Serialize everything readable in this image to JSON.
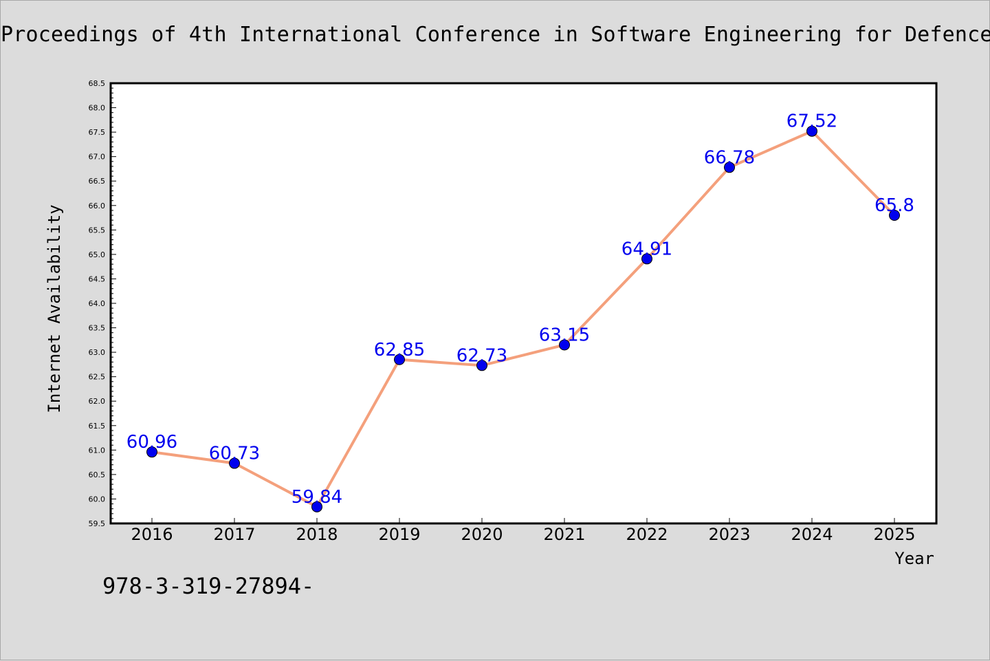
{
  "header": {
    "title": "Proceedings of 4th International Conference in Software Engineering for Defence"
  },
  "footer": {
    "code": "978-3-319-27894-"
  },
  "chart_data": {
    "type": "line",
    "title": "",
    "xlabel": "Year",
    "ylabel": "Internet Availability",
    "categories": [
      "2016",
      "2017",
      "2018",
      "2019",
      "2020",
      "2021",
      "2022",
      "2023",
      "2024",
      "2025"
    ],
    "series": [
      {
        "values": [
          60.96,
          60.73,
          59.84,
          62.85,
          62.73,
          63.15,
          64.91,
          66.78,
          67.52,
          65.8
        ],
        "labels": [
          "60.96",
          "60.73",
          "59.84",
          "62.85",
          "62.73",
          "63.15",
          "64.91",
          "66.78",
          "67.52",
          "65.8"
        ],
        "line_color": "#f4a07c",
        "marker_color": "#0000ee"
      }
    ],
    "ylim": [
      59.5,
      68.5
    ],
    "yticks": [
      "59.5",
      "60.0",
      "60.5",
      "61.0",
      "61.5",
      "62.0",
      "62.5",
      "63.0",
      "63.5",
      "64.0",
      "64.5",
      "65.0",
      "65.5",
      "66.0",
      "66.5",
      "67.0",
      "67.5",
      "68.0",
      "68.5"
    ],
    "grid": false,
    "legend": "none"
  }
}
